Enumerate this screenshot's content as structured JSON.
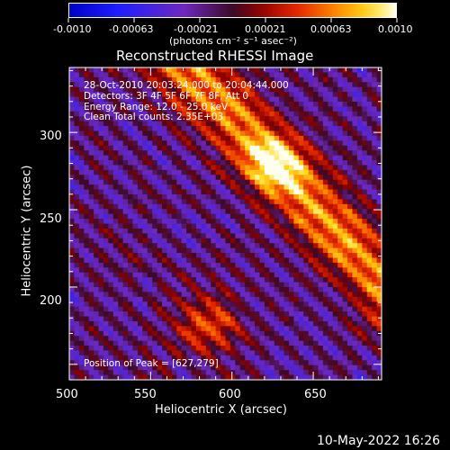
{
  "colorbar": {
    "ticks": [
      "-0.0010",
      "-0.00063",
      "-0.00021",
      "0.00021",
      "0.00063",
      "0.0010"
    ],
    "units": "(photons cm⁻² s⁻¹ asec⁻²)",
    "vmin": -0.001,
    "vmax": 0.001
  },
  "chart_data": {
    "type": "heatmap",
    "title": "Reconstructed RHESSI Image",
    "xlabel": "Heliocentric X (arcsec)",
    "ylabel": "Heliocentric Y (arcsec)",
    "xlim": [
      500,
      692
    ],
    "ylim": [
      140,
      342
    ],
    "xticks": [
      "500",
      "550",
      "600",
      "650"
    ],
    "yticks": [
      "200",
      "250",
      "300"
    ],
    "colormap": "blue-purple-red-yellow-white (diverging)",
    "peak": {
      "x": 627,
      "y": 279
    },
    "annotation_lines": [
      "28-Oct-2010 20:03:24.000 to 20:04:44.000",
      "Detectors: 3F 4F 5F 6F 7F 8F, Att 0",
      "Energy Range: 12.0 - 25.0 keV",
      "Clean    Total counts: 2.35E+03"
    ],
    "peak_label": "Position of Peak = [627,279]"
  },
  "footer": {
    "timestamp": "10-May-2022 16:26"
  }
}
